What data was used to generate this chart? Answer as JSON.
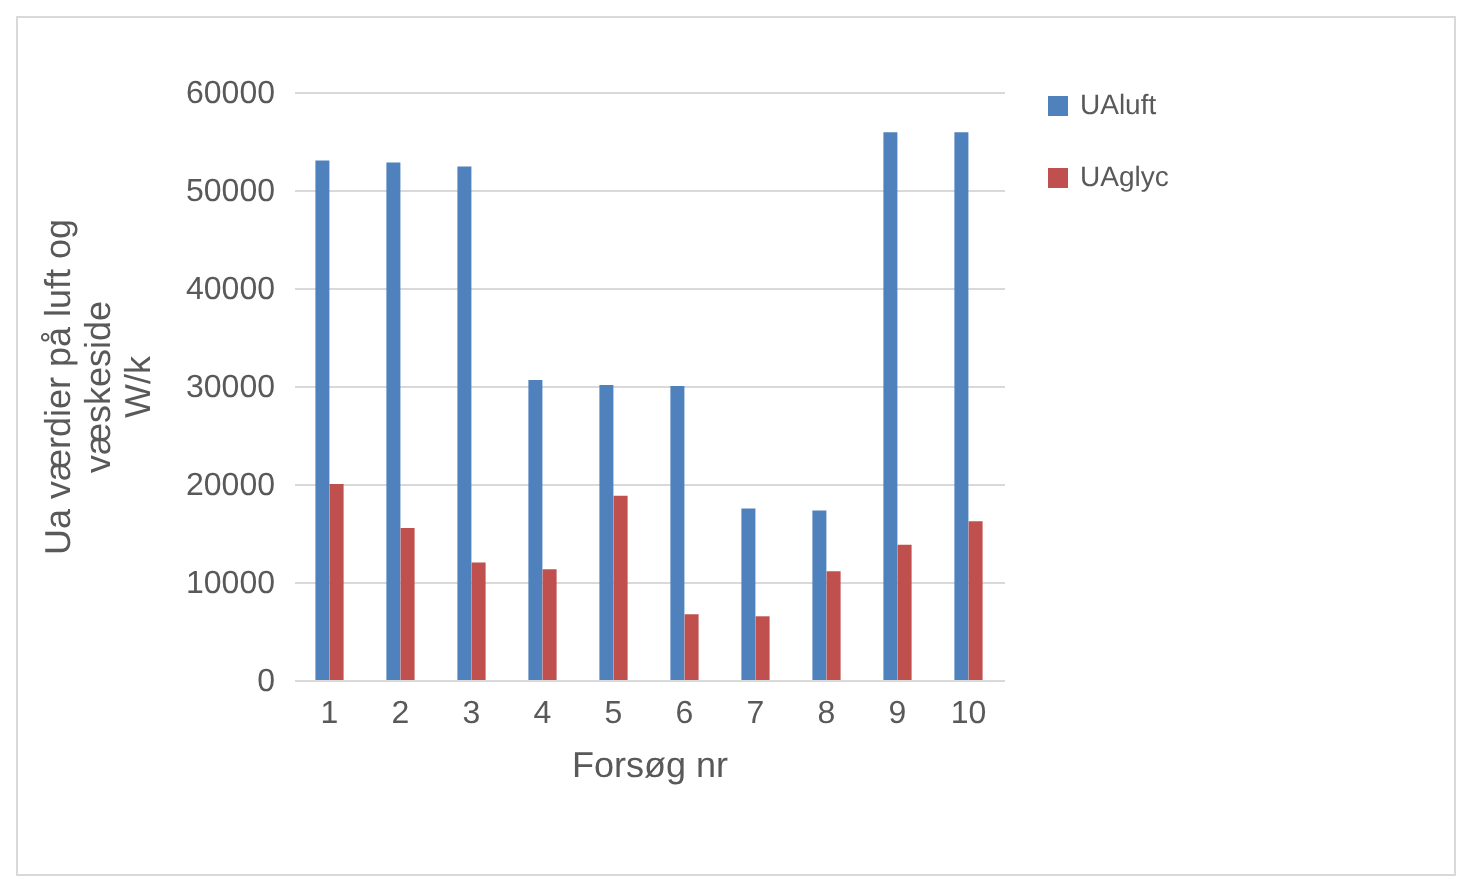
{
  "chart_data": {
    "type": "bar",
    "xlabel": "Forsøg nr",
    "ylabel": "Ua værdier på luft og væskeside W/k",
    "categories": [
      "1",
      "2",
      "3",
      "4",
      "5",
      "6",
      "7",
      "8",
      "9",
      "10"
    ],
    "series": [
      {
        "name": "UAluft",
        "color": "#4f81bd",
        "values": [
          53000,
          52800,
          52400,
          30600,
          30100,
          30000,
          17500,
          17300,
          55900,
          55900
        ]
      },
      {
        "name": "UAglyc",
        "color": "#c0504d",
        "values": [
          20000,
          15500,
          12000,
          11300,
          18800,
          6700,
          6500,
          11100,
          13800,
          16200
        ]
      }
    ],
    "ylim": [
      0,
      60000
    ],
    "yticks": [
      0,
      10000,
      20000,
      30000,
      40000,
      50000,
      60000
    ],
    "grid": "y",
    "legend": "right"
  }
}
